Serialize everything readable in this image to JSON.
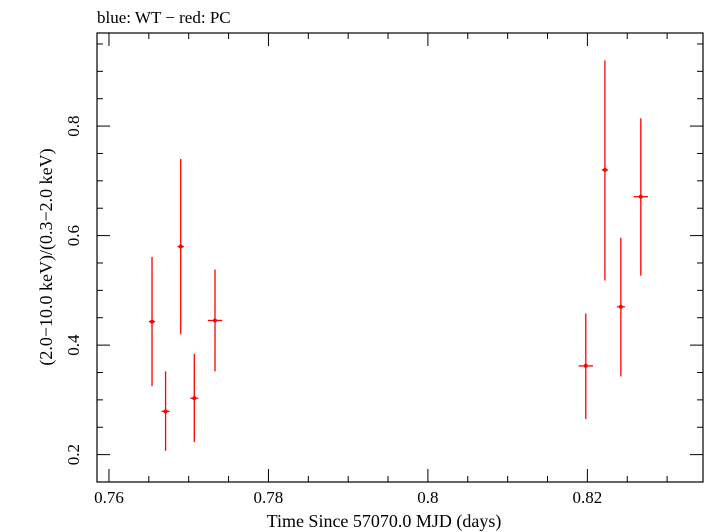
{
  "chart_data": {
    "type": "scatter",
    "title": "blue: WT − red: PC",
    "xlabel": "Time Since 57070.0 MJD (days)",
    "ylabel": "(2.0−10.0 keV)/(0.3−2.0 keV)",
    "xlim": [
      0.7585,
      0.8345
    ],
    "ylim": [
      0.15,
      0.97
    ],
    "xticks": [
      0.76,
      0.78,
      0.8,
      0.82
    ],
    "xtick_labels": [
      "0.76",
      "0.78",
      "0.8",
      "0.82"
    ],
    "yticks": [
      0.2,
      0.4,
      0.6,
      0.8
    ],
    "ytick_labels": [
      "0.2",
      "0.4",
      "0.6",
      "0.8"
    ],
    "grid": false,
    "series": [
      {
        "color": "#ff0000",
        "points": [
          {
            "x": 0.7654,
            "y": 0.443,
            "xerr": 0.0004,
            "ylow": 0.325,
            "yhigh": 0.561
          },
          {
            "x": 0.7671,
            "y": 0.279,
            "xerr": 0.0005,
            "ylow": 0.207,
            "yhigh": 0.352
          },
          {
            "x": 0.769,
            "y": 0.58,
            "xerr": 0.0004,
            "ylow": 0.42,
            "yhigh": 0.74
          },
          {
            "x": 0.7707,
            "y": 0.303,
            "xerr": 0.0005,
            "ylow": 0.223,
            "yhigh": 0.384
          },
          {
            "x": 0.7733,
            "y": 0.445,
            "xerr": 0.0009,
            "ylow": 0.352,
            "yhigh": 0.538
          },
          {
            "x": 0.8198,
            "y": 0.362,
            "xerr": 0.0009,
            "ylow": 0.265,
            "yhigh": 0.458
          },
          {
            "x": 0.8222,
            "y": 0.72,
            "xerr": 0.0004,
            "ylow": 0.518,
            "yhigh": 0.92
          },
          {
            "x": 0.8242,
            "y": 0.47,
            "xerr": 0.0005,
            "ylow": 0.343,
            "yhigh": 0.596
          },
          {
            "x": 0.8267,
            "y": 0.671,
            "xerr": 0.0009,
            "ylow": 0.527,
            "yhigh": 0.814
          }
        ]
      }
    ]
  }
}
